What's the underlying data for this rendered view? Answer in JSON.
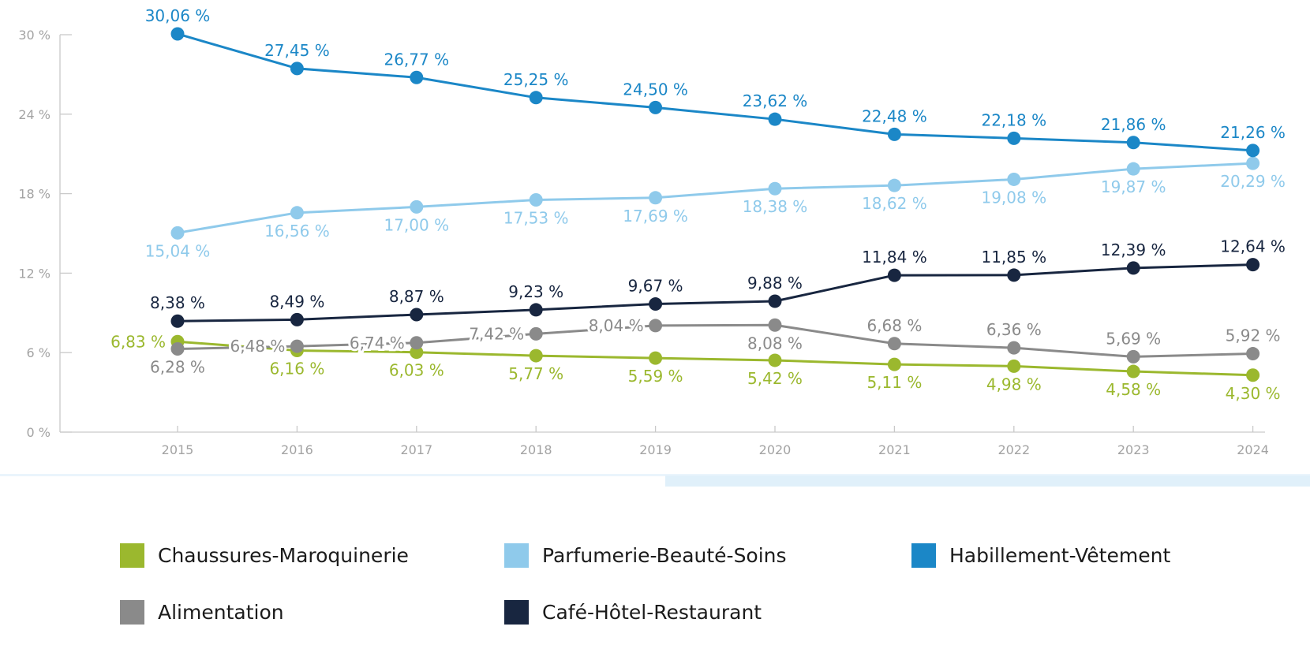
{
  "chart_data": {
    "type": "line",
    "title": "",
    "xlabel": "",
    "ylabel": "",
    "x": [
      "2015",
      "2016",
      "2017",
      "2018",
      "2019",
      "2020",
      "2021",
      "2022",
      "2023",
      "2024"
    ],
    "ylim": [
      0,
      30
    ],
    "yticks": [
      "0 %",
      "6 %",
      "12 %",
      "18 %",
      "24 %",
      "30 %"
    ],
    "grid": false,
    "legend_position": "bottom",
    "series": [
      {
        "name": "Habillement-Vêtement",
        "color": "#1b87c7",
        "values": [
          30.06,
          27.45,
          26.77,
          25.25,
          24.5,
          23.62,
          22.48,
          22.18,
          21.86,
          21.26
        ],
        "labels": [
          "30,06 %",
          "27,45 %",
          "26,77 %",
          "25,25 %",
          "24,50 %",
          "23,62 %",
          "22,48 %",
          "22,18 %",
          "21,86 %",
          "21,26 %"
        ]
      },
      {
        "name": "Parfumerie-Beauté-Soins",
        "color": "#8fcaeb",
        "values": [
          15.04,
          16.56,
          17.0,
          17.53,
          17.69,
          18.38,
          18.62,
          19.08,
          19.87,
          20.29
        ],
        "labels": [
          "15,04 %",
          "16,56 %",
          "17,00 %",
          "17,53 %",
          "17,69 %",
          "18,38 %",
          "18,62 %",
          "19,08 %",
          "19,87 %",
          "20,29 %"
        ]
      },
      {
        "name": "Café-Hôtel-Restaurant",
        "color": "#182640",
        "values": [
          8.38,
          8.49,
          8.87,
          9.23,
          9.67,
          9.88,
          11.84,
          11.85,
          12.39,
          12.64
        ],
        "labels": [
          "8,38 %",
          "8,49 %",
          "8,87 %",
          "9,23 %",
          "9,67 %",
          "9,88 %",
          "11,84 %",
          "11,85 %",
          "12,39 %",
          "12,64 %"
        ]
      },
      {
        "name": "Alimentation",
        "color": "#8a8a8a",
        "values": [
          6.28,
          6.48,
          6.74,
          7.42,
          8.04,
          8.08,
          6.68,
          6.36,
          5.69,
          5.92
        ],
        "labels": [
          "6,28 %",
          "6,48 %",
          "6,74 %",
          "7,42 %",
          "8,04 %",
          "8,08 %",
          "6,68 %",
          "6,36 %",
          "5,69 %",
          "5,92 %"
        ]
      },
      {
        "name": "Chaussures-Maroquinerie",
        "color": "#9bb82e",
        "values": [
          6.83,
          6.16,
          6.03,
          5.77,
          5.59,
          5.42,
          5.11,
          4.98,
          4.58,
          4.3
        ],
        "labels": [
          "6,83 %",
          "6,16 %",
          "6,03 %",
          "5,77 %",
          "5,59 %",
          "5,42 %",
          "5,11 %",
          "4,98 %",
          "4,58 %",
          "4,30 %"
        ]
      }
    ]
  },
  "legend": {
    "items": [
      {
        "label": "Chaussures-Maroquinerie",
        "color": "#9bb82e"
      },
      {
        "label": "Parfumerie-Beauté-Soins",
        "color": "#8fcaeb"
      },
      {
        "label": "Habillement-Vêtement",
        "color": "#1b87c7"
      },
      {
        "label": "Alimentation",
        "color": "#8a8a8a"
      },
      {
        "label": "Café-Hôtel-Restaurant",
        "color": "#182640"
      }
    ]
  },
  "decor": {
    "band_light": "#eaf5fc",
    "band_strong": "#e0f0fa"
  }
}
